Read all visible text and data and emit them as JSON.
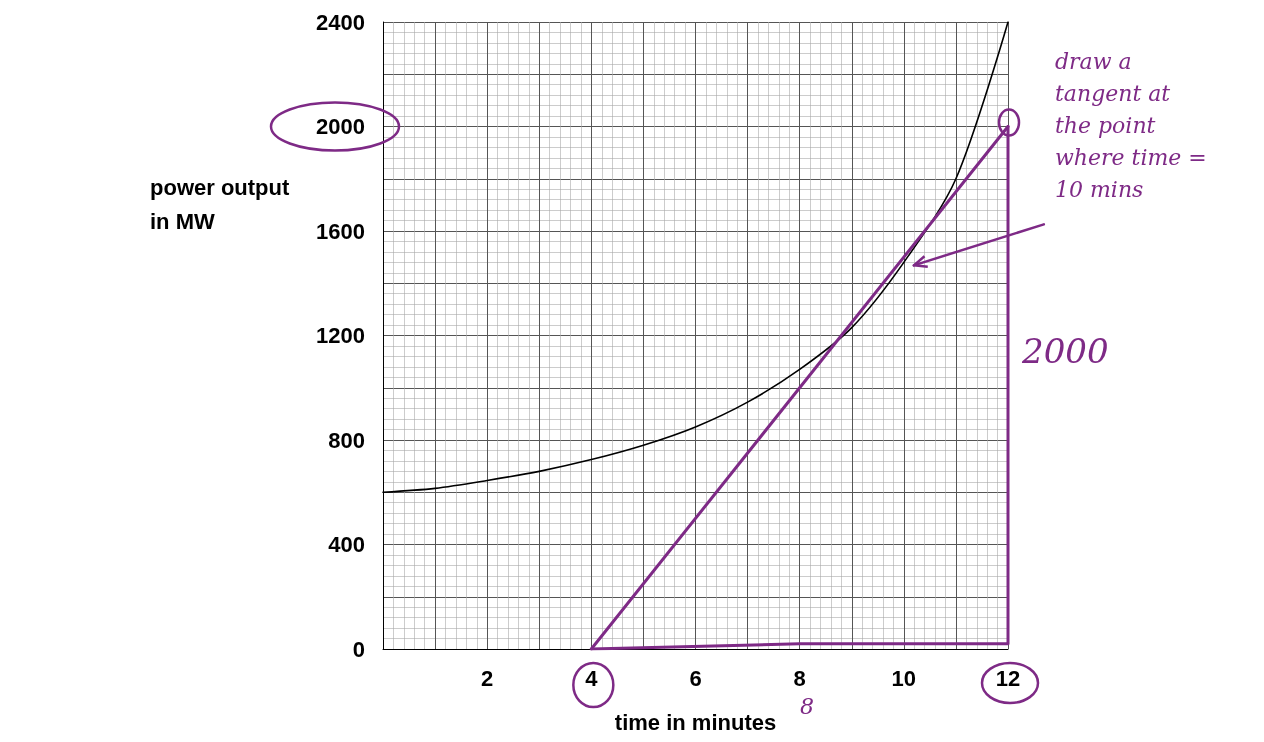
{
  "chart_data": {
    "type": "line",
    "xlabel": "time in minutes",
    "ylabel": "power output in MW",
    "x": [
      0,
      1,
      2,
      3,
      4,
      5,
      6,
      7,
      8,
      9,
      10,
      11,
      12
    ],
    "series": [
      {
        "color": "#000000",
        "values": [
          600,
          615,
          645,
          680,
          725,
          780,
          850,
          945,
          1070,
          1230,
          1480,
          1800,
          2400
        ]
      },
      {
        "color": "#7e2a86",
        "x": [
          4,
          12
        ],
        "values": [
          0,
          2000
        ]
      },
      {
        "color": "#7e2a86",
        "x": [
          4,
          8,
          12,
          12
        ],
        "values": [
          0,
          20,
          20,
          2000
        ]
      }
    ],
    "xlim": [
      0,
      12
    ],
    "xticks": [
      {
        "value": 0,
        "label": null
      },
      {
        "value": 1,
        "label": null
      },
      2,
      {
        "value": 3,
        "label": null
      },
      4,
      {
        "value": 5,
        "label": null
      },
      6,
      {
        "value": 7,
        "label": null
      },
      8,
      {
        "value": 9,
        "label": null
      },
      10,
      {
        "value": 11,
        "label": null
      },
      12
    ],
    "ylim": [
      0,
      2400
    ],
    "yticks": [
      0,
      {
        "value": 200,
        "label": null
      },
      400,
      {
        "value": 600,
        "label": null
      },
      800,
      {
        "value": 1000,
        "label": null
      },
      1200,
      {
        "value": 1400,
        "label": null
      },
      1600,
      {
        "value": 1800,
        "label": null
      },
      2000,
      {
        "value": 2200,
        "label": null
      },
      2400
    ],
    "grid": true,
    "marker": "none",
    "line_style": "solid",
    "annotations": [
      "draw a tangent at the point where time = 10 mins",
      "2000",
      "8"
    ]
  }
}
